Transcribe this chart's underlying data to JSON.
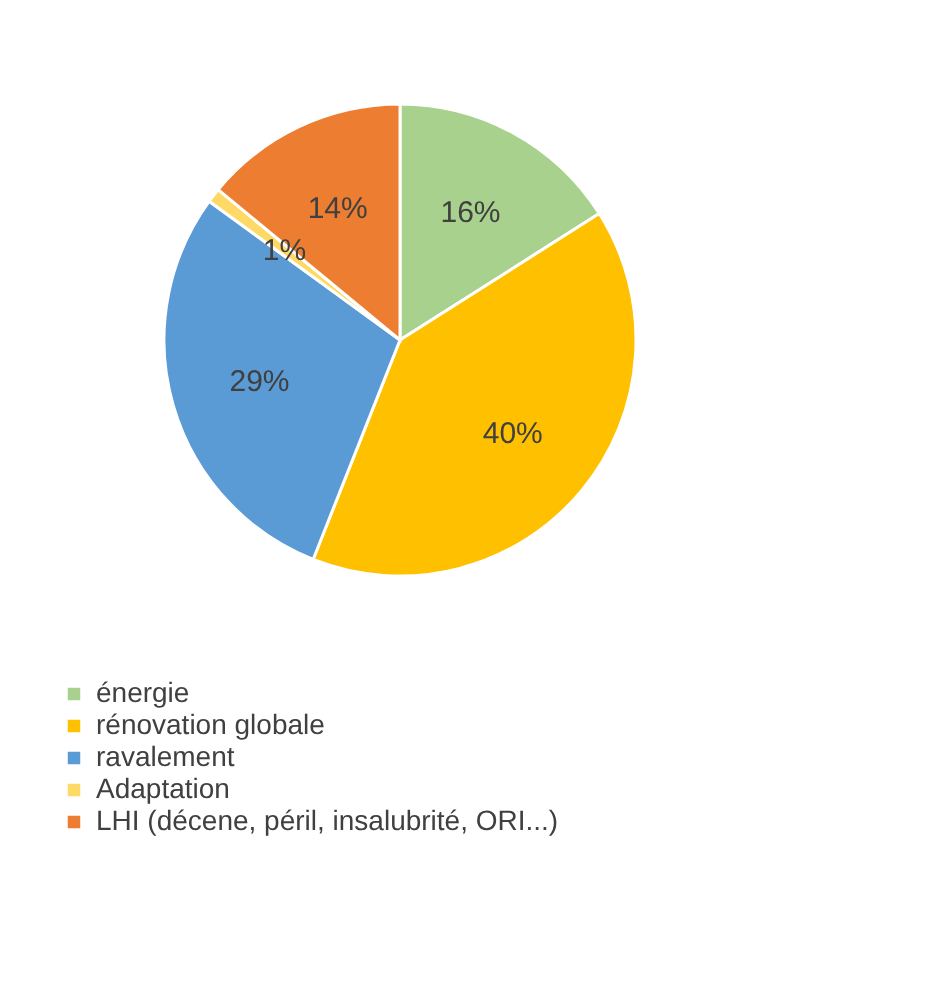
{
  "chart_data": {
    "type": "pie",
    "categories": [
      "énergie",
      "rénovation globale",
      "ravalement",
      "Adaptation",
      "LHI (décene, péril, insalubrité, ORI...)"
    ],
    "values": [
      16,
      40,
      29,
      1,
      14
    ],
    "colors": [
      "#a9d18e",
      "#ffc000",
      "#5b9bd5",
      "#ffd966",
      "#ed7d31"
    ],
    "value_labels": [
      "16%",
      "40%",
      "29%",
      "1%",
      "14%"
    ],
    "legend": "bottom left"
  }
}
